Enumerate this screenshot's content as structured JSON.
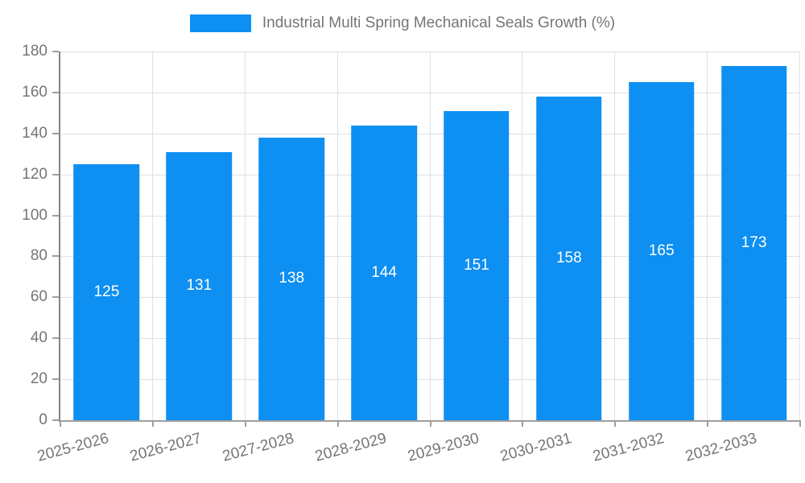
{
  "chart_data": {
    "type": "bar",
    "title": "Industrial Multi Spring Mechanical Seals Growth (%)",
    "categories": [
      "2025-2026",
      "2026-2027",
      "2027-2028",
      "2028-2029",
      "2029-2030",
      "2030-2031",
      "2031-2032",
      "2032-2033"
    ],
    "values": [
      125,
      131,
      138,
      144,
      151,
      158,
      165,
      173
    ],
    "xlabel": "",
    "ylabel": "",
    "ylim": [
      0,
      180
    ],
    "ytick_step": 20,
    "yticks": [
      0,
      20,
      40,
      60,
      80,
      100,
      120,
      140,
      160,
      180
    ],
    "grid": true,
    "legend_position": "top-center",
    "legend_entries": [
      "Industrial Multi Spring Mechanical Seals Growth (%)"
    ],
    "colors": {
      "bar": "#0e8ff2",
      "bar_value_text": "#ffffff",
      "axis_text": "#757575",
      "gridline": "#e0e0e0",
      "axis_line": "#9e9e9e"
    }
  }
}
